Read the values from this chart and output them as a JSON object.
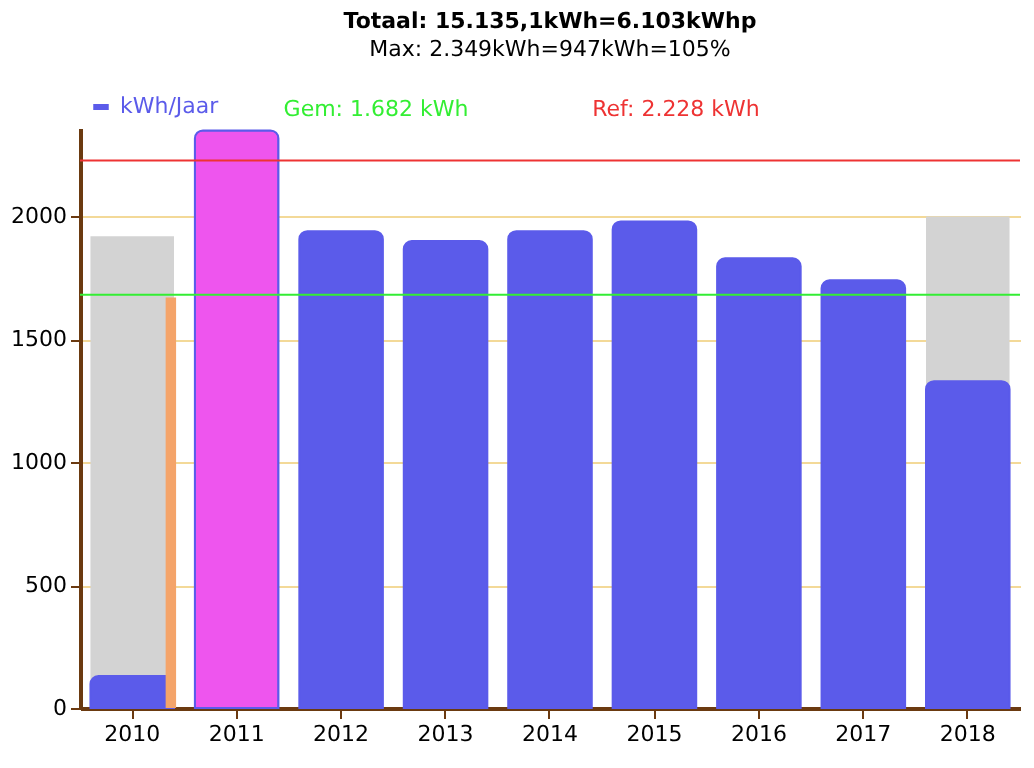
{
  "chart_data": {
    "type": "bar",
    "title": "Totaal: 15.135,1kWh=6.103kWhp",
    "subtitle": "Max: 2.349kWh=947kWh=105%",
    "categories": [
      "2010",
      "2011",
      "2012",
      "2013",
      "2014",
      "2015",
      "2016",
      "2017",
      "2018"
    ],
    "series": [
      {
        "color": "#d3d3d3",
        "values": [
          1920,
          null,
          null,
          null,
          null,
          null,
          null,
          null,
          2000
        ]
      },
      {
        "name": "kWh/Jaar",
        "color": "#5b5bea",
        "colors": [
          "#5b5bea",
          "#ee55ee",
          "#5b5bea",
          "#5b5bea",
          "#5b5bea",
          "#5b5bea",
          "#5b5bea",
          "#5b5bea",
          "#5b5bea"
        ],
        "values": [
          130,
          2350,
          1940,
          1900,
          1940,
          1980,
          1830,
          1740,
          1330
        ]
      },
      {
        "color": "#f4a46a",
        "values": [
          1670,
          null,
          null,
          null,
          null,
          null,
          null,
          null,
          null
        ]
      }
    ],
    "ref_lines": [
      {
        "axis": "y",
        "value": 1682,
        "label": "Gem: 1.682 kWh",
        "color": "#33ee33"
      },
      {
        "axis": "y",
        "value": 2228,
        "label": "Ref: 2.228 kWh",
        "color": "#ee3333"
      }
    ],
    "ylim": [
      0,
      2360
    ],
    "yticks": [
      0,
      500,
      1000,
      1500,
      2000
    ],
    "grid": "y",
    "legend": "top left"
  }
}
